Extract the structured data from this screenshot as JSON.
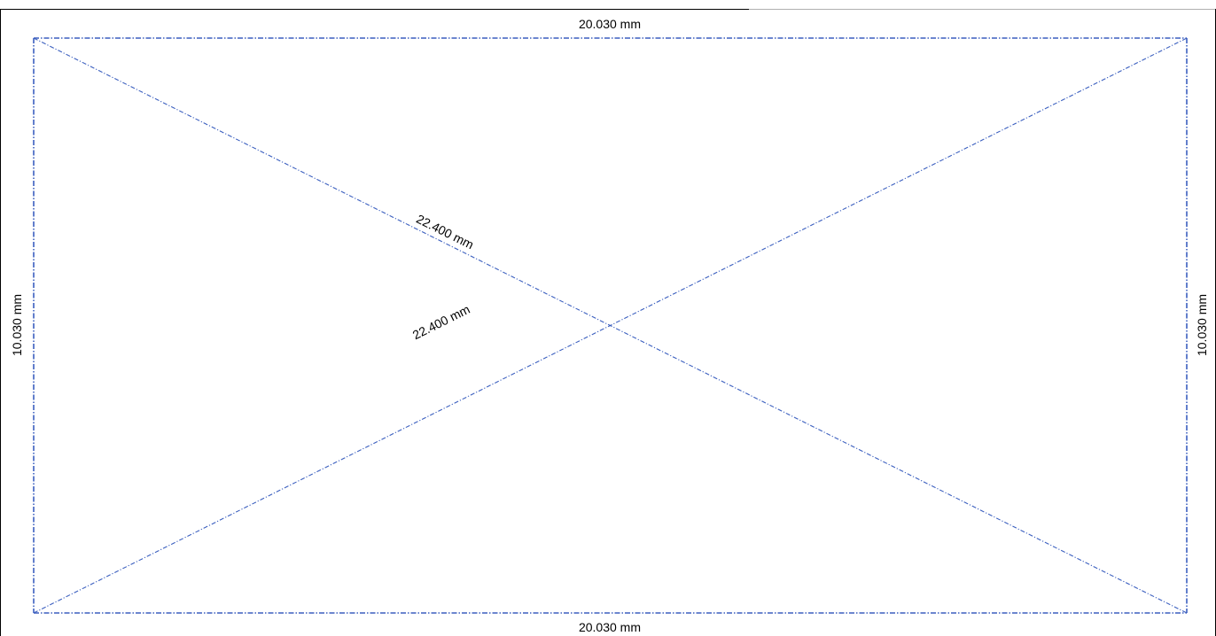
{
  "drawing": {
    "line_color": "#3b5fbf",
    "frame_color": "#000000",
    "dimensions": {
      "top_width": "20.030 mm",
      "bottom_width": "20.030 mm",
      "left_height": "10.030 mm",
      "right_height": "10.030 mm",
      "diagonal_descending": "22.400 mm",
      "diagonal_ascending": "22.400 mm"
    }
  }
}
